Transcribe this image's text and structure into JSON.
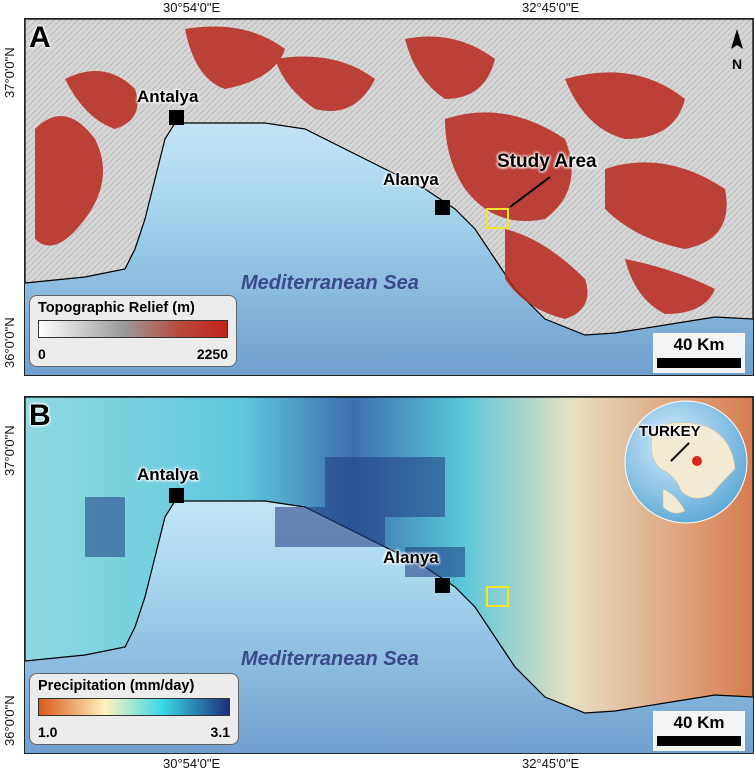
{
  "coordinates": {
    "top_left_lon": "30°54'0\"E",
    "top_right_lon": "32°45'0\"E",
    "bottom_left_lon": "30°54'0\"E",
    "bottom_right_lon": "32°45'0\"E",
    "panel_a_lat_top": "37°0'0\"N",
    "panel_a_lat_bottom": "36°0'0\"N",
    "panel_b_lat_top": "37°0'0\"N",
    "panel_b_lat_bottom": "36°0'0\"N"
  },
  "panel_a": {
    "label": "A",
    "cities": [
      "Antalya",
      "Alanya"
    ],
    "sea": "Mediterranean Sea",
    "study_area_label": "Study Area",
    "legend": {
      "title": "Topographic Relief (m)",
      "min": "0",
      "max": "2250",
      "colors": [
        "#ffffff",
        "#9a9a9a",
        "#b84a3c",
        "#c0231a"
      ]
    },
    "scale": "40 Km",
    "north_icon": "north-arrow-icon"
  },
  "panel_b": {
    "label": "B",
    "cities": [
      "Antalya",
      "Alanya"
    ],
    "sea": "Mediterranean Sea",
    "country": "TURKEY",
    "legend": {
      "title": "Precipitation (mm/day)",
      "min": "1.0",
      "max": "3.1",
      "colors": [
        "#d95a1a",
        "#fff3c0",
        "#38d9e6",
        "#1d2f7a"
      ]
    },
    "scale": "40 Km",
    "globe_icon": "globe-icon"
  },
  "colors": {
    "relief_high": "#b8271d",
    "sea": "#aedcf0",
    "study_box": "#f2e52b"
  }
}
